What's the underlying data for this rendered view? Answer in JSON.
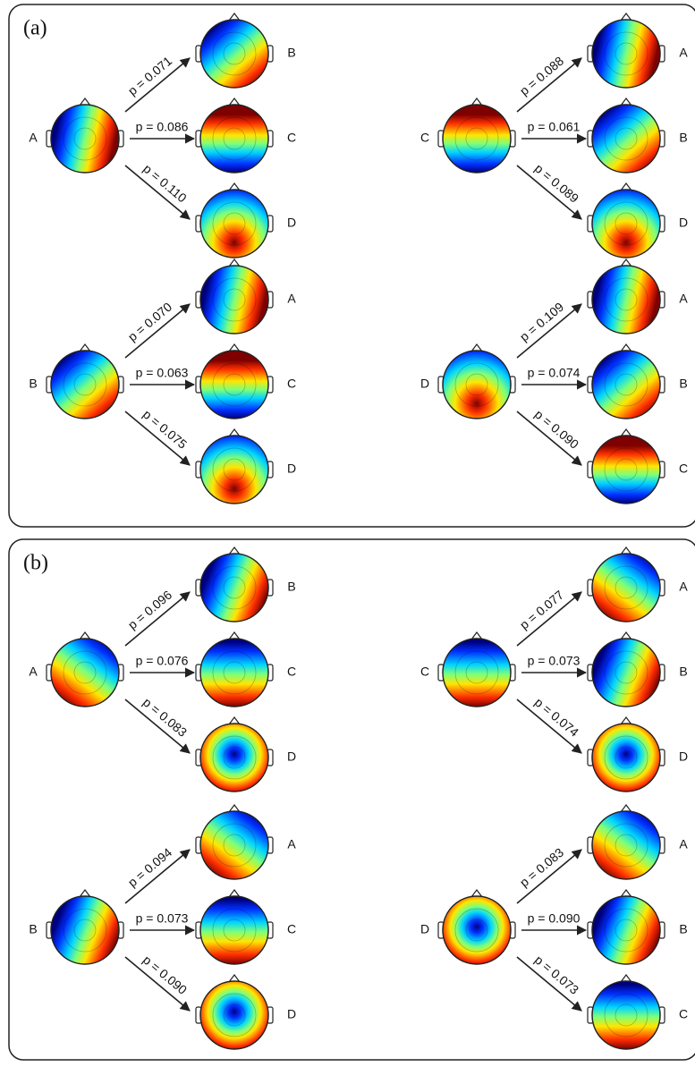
{
  "panels": [
    {
      "label": "(a)",
      "groups": [
        {
          "source": "A",
          "transitions": [
            {
              "p": "p = 0.071",
              "target": "B"
            },
            {
              "p": "p = 0.086",
              "target": "C"
            },
            {
              "p": "p = 0.110",
              "target": "D"
            }
          ]
        },
        {
          "source": "C",
          "transitions": [
            {
              "p": "p = 0.088",
              "target": "A"
            },
            {
              "p": "p = 0.061",
              "target": "B"
            },
            {
              "p": "p = 0.089",
              "target": "D"
            }
          ]
        },
        {
          "source": "B",
          "transitions": [
            {
              "p": "p = 0.070",
              "target": "A"
            },
            {
              "p": "p = 0.063",
              "target": "C"
            },
            {
              "p": "p = 0.075",
              "target": "D"
            }
          ]
        },
        {
          "source": "D",
          "transitions": [
            {
              "p": "p = 0.109",
              "target": "A"
            },
            {
              "p": "p = 0.074",
              "target": "B"
            },
            {
              "p": "p = 0.090",
              "target": "C"
            }
          ]
        }
      ]
    },
    {
      "label": "(b)",
      "groups": [
        {
          "source": "A",
          "transitions": [
            {
              "p": "p = 0.096",
              "target": "B"
            },
            {
              "p": "p = 0.076",
              "target": "C"
            },
            {
              "p": "p = 0.083",
              "target": "D"
            }
          ]
        },
        {
          "source": "C",
          "transitions": [
            {
              "p": "p = 0.077",
              "target": "A"
            },
            {
              "p": "p = 0.073",
              "target": "B"
            },
            {
              "p": "p = 0.074",
              "target": "D"
            }
          ]
        },
        {
          "source": "B",
          "transitions": [
            {
              "p": "p = 0.094",
              "target": "A"
            },
            {
              "p": "p = 0.073",
              "target": "C"
            },
            {
              "p": "p = 0.090",
              "target": "D"
            }
          ]
        },
        {
          "source": "D",
          "transitions": [
            {
              "p": "p = 0.083",
              "target": "A"
            },
            {
              "p": "p = 0.090",
              "target": "B"
            },
            {
              "p": "p = 0.073",
              "target": "C"
            }
          ]
        }
      ]
    }
  ]
}
